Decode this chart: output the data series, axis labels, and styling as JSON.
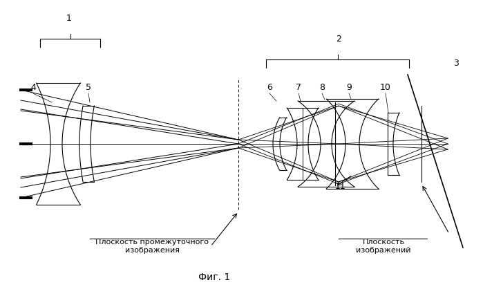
{
  "bg_color": "#ffffff",
  "line_color": "#000000",
  "fig_width": 6.99,
  "fig_height": 4.28,
  "dpi": 100,
  "title": "Фиг. 1",
  "label_intermediate": "Плоскость промежуточного\nизображения",
  "label_image": "Плоскость\nизображений"
}
